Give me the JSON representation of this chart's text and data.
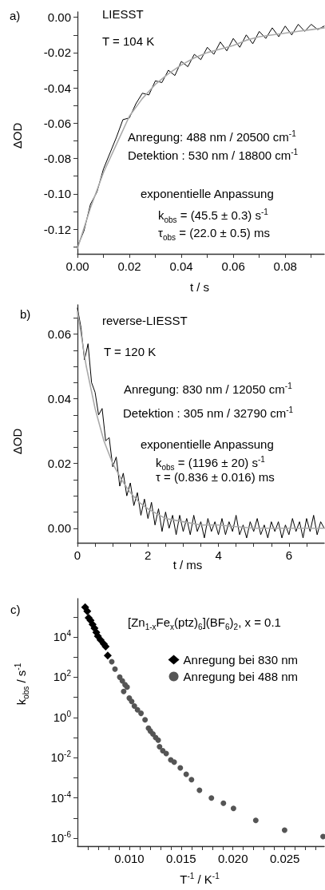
{
  "chart_data": [
    {
      "type": "line",
      "title": "a)",
      "xlabel": "t / s",
      "ylabel": "ΔOD",
      "annotations": [
        "LIESST",
        "T = 104 K",
        "Anregung: 488 nm / 20500 cm$^{-1}$",
        "Detektion : 530 nm / 18800 cm$^{-1}$",
        "exponentielle Anpassung",
        "k$_{obs}$ = (45.5 ± 0.3) s$^{-1}$",
        "τ$_{obs}$ = (22.0 ± 0.5) ms"
      ],
      "xlim": [
        0,
        0.095
      ],
      "ylim": [
        -0.134,
        0.003
      ],
      "xticks": [
        {
          "value": 0,
          "label": "0.00"
        },
        {
          "value": 0.01,
          "label": null
        },
        {
          "value": 0.02,
          "label": "0.02"
        },
        {
          "value": 0.03,
          "label": null
        },
        {
          "value": 0.04,
          "label": "0.04"
        },
        {
          "value": 0.05,
          "label": null
        },
        {
          "value": 0.06,
          "label": "0.06"
        },
        {
          "value": 0.07,
          "label": null
        },
        {
          "value": 0.08,
          "label": "0.08"
        },
        {
          "value": 0.09,
          "label": null
        }
      ],
      "yticks": [
        {
          "value": 0,
          "label": "0.00"
        },
        {
          "value": -0.01,
          "label": null
        },
        {
          "value": -0.02,
          "label": "-0.02"
        },
        {
          "value": -0.03,
          "label": null
        },
        {
          "value": -0.04,
          "label": "-0.04"
        },
        {
          "value": -0.05,
          "label": null
        },
        {
          "value": -0.06,
          "label": "-0.06"
        },
        {
          "value": -0.07,
          "label": null
        },
        {
          "value": -0.08,
          "label": "-0.08"
        },
        {
          "value": -0.09,
          "label": null
        },
        {
          "value": -0.1,
          "label": "-0.10"
        },
        {
          "value": -0.11,
          "label": null
        },
        {
          "value": -0.12,
          "label": "-0.12"
        },
        {
          "value": -0.13,
          "label": null
        }
      ],
      "grid": false,
      "legend": false,
      "marker": "none",
      "line_style": "solid",
      "series": [
        {
          "color": "#000000",
          "x": [
            0,
            0.0025,
            0.005,
            0.0075,
            0.01,
            0.0125,
            0.015,
            0.0175,
            0.02,
            0.0225,
            0.025,
            0.0275,
            0.03,
            0.0325,
            0.035,
            0.0375,
            0.04,
            0.0425,
            0.045,
            0.0475,
            0.05,
            0.0525,
            0.055,
            0.0575,
            0.06,
            0.0625,
            0.065,
            0.0675,
            0.07,
            0.0725,
            0.075,
            0.0775,
            0.08,
            0.0825,
            0.085,
            0.0875,
            0.09,
            0.0925,
            0.095
          ],
          "values": [
            -0.13,
            -0.121,
            -0.106,
            -0.099,
            -0.086,
            -0.077,
            -0.068,
            -0.058,
            -0.057,
            -0.049,
            -0.043,
            -0.044,
            -0.036,
            -0.037,
            -0.03,
            -0.033,
            -0.025,
            -0.028,
            -0.021,
            -0.024,
            -0.017,
            -0.021,
            -0.014,
            -0.019,
            -0.012,
            -0.017,
            -0.01,
            -0.015,
            -0.008,
            -0.012,
            -0.006,
            -0.011,
            -0.005,
            -0.01,
            -0.004,
            -0.008,
            -0.004,
            -0.007,
            -0.005
          ]
        },
        {
          "color": "#aaaaaa",
          "x": [
            0,
            0.005,
            0.01,
            0.015,
            0.02,
            0.025,
            0.03,
            0.035,
            0.04,
            0.045,
            0.05,
            0.055,
            0.06,
            0.065,
            0.07,
            0.075,
            0.08,
            0.085,
            0.09,
            0.095
          ],
          "values": [
            -0.131,
            -0.108,
            -0.088,
            -0.072,
            -0.056,
            -0.046,
            -0.038,
            -0.032,
            -0.027,
            -0.023,
            -0.02,
            -0.018,
            -0.016,
            -0.013,
            -0.011,
            -0.01,
            -0.009,
            -0.008,
            -0.007,
            -0.006
          ]
        }
      ]
    },
    {
      "type": "line",
      "title": "b)",
      "xlabel": "t / ms",
      "ylabel": "ΔOD",
      "annotations": [
        "reverse-LIESST",
        "T = 120 K",
        "Anregung: 830 nm / 12050 cm$^{-1}$",
        "Detektion : 305 nm / 32790 cm$^{-1}$",
        "exponentielle Anpassung",
        "k$_{obs}$ = (1196 ± 20) s$^{-1}$",
        "τ = (0.836 ± 0.016) ms"
      ],
      "xlim": [
        0,
        7
      ],
      "ylim": [
        -0.0045,
        0.069
      ],
      "xticks": [
        0,
        {
          "value": 0.5,
          "label": null
        },
        {
          "value": 1,
          "label": null
        },
        {
          "value": 1.5,
          "label": null
        },
        2,
        {
          "value": 2.5,
          "label": null
        },
        {
          "value": 3,
          "label": null
        },
        {
          "value": 3.5,
          "label": null
        },
        4,
        {
          "value": 4.5,
          "label": null
        },
        {
          "value": 5,
          "label": null
        },
        {
          "value": 5.5,
          "label": null
        },
        6,
        {
          "value": 6.5,
          "label": null
        }
      ],
      "yticks": [
        {
          "value": 0,
          "label": "0.00"
        },
        {
          "value": 0.005,
          "label": null
        },
        {
          "value": 0.01,
          "label": null
        },
        {
          "value": 0.015,
          "label": null
        },
        {
          "value": 0.02,
          "label": "0.02"
        },
        {
          "value": 0.025,
          "label": null
        },
        {
          "value": 0.03,
          "label": null
        },
        {
          "value": 0.035,
          "label": null
        },
        {
          "value": 0.04,
          "label": "0.04"
        },
        {
          "value": 0.045,
          "label": null
        },
        {
          "value": 0.05,
          "label": null
        },
        {
          "value": 0.055,
          "label": null
        },
        {
          "value": 0.06,
          "label": "0.06"
        },
        {
          "value": 0.065,
          "label": null
        }
      ],
      "grid": false,
      "legend": false,
      "marker": "none",
      "line_style": "solid",
      "series": [
        {
          "color": "#000000",
          "x": [
            0,
            0.1,
            0.2,
            0.3,
            0.4,
            0.5,
            0.6,
            0.7,
            0.8,
            0.9,
            1,
            1.1,
            1.2,
            1.3,
            1.4,
            1.5,
            1.6,
            1.7,
            1.8,
            1.9,
            2,
            2.1,
            2.2,
            2.3,
            2.4,
            2.5,
            2.6,
            2.7,
            2.8,
            2.9,
            3,
            3.1,
            3.2,
            3.3,
            3.4,
            3.5,
            3.6,
            3.7,
            3.8,
            3.9,
            4,
            4.1,
            4.2,
            4.3,
            4.4,
            4.5,
            4.6,
            4.7,
            4.8,
            4.9,
            5,
            5.1,
            5.2,
            5.3,
            5.4,
            5.5,
            5.6,
            5.7,
            5.8,
            5.9,
            6,
            6.1,
            6.2,
            6.3,
            6.4,
            6.5,
            6.6,
            6.7,
            6.8,
            6.9,
            7
          ],
          "values": [
            0.068,
            0.062,
            0.052,
            0.057,
            0.045,
            0.042,
            0.035,
            0.037,
            0.027,
            0.028,
            0.019,
            0.022,
            0.013,
            0.017,
            0.01,
            0.014,
            0.007,
            0.011,
            0.004,
            0.009,
            0.003,
            0.008,
            0.001,
            0.006,
            -0.001,
            0.005,
            0,
            0.004,
            -0.002,
            0.004,
            -0.001,
            0.003,
            -0.002,
            0.004,
            -0.001,
            0.002,
            -0.003,
            0.003,
            -0.001,
            0.002,
            -0.002,
            0.003,
            -0.002,
            0.002,
            -0.001,
            0.004,
            -0.002,
            0.001,
            -0.003,
            0.002,
            -0.001,
            0.003,
            -0.002,
            0.001,
            -0.003,
            0.002,
            -0.001,
            0.002,
            -0.003,
            0.001,
            -0.002,
            0.003,
            -0.001,
            0.002,
            -0.003,
            0.003,
            -0.001,
            0.004,
            -0.002,
            0.002,
            0
          ]
        },
        {
          "color": "#aaaaaa",
          "x": [
            0,
            0.25,
            0.5,
            0.75,
            1,
            1.25,
            1.5,
            1.75,
            2,
            2.5,
            3,
            3.5,
            4,
            5,
            6,
            7
          ],
          "values": [
            0.067,
            0.05,
            0.037,
            0.027,
            0.02,
            0.015,
            0.011,
            0.008,
            0.006,
            0.003,
            0.002,
            0.001,
            0.001,
            0,
            0,
            0
          ]
        }
      ]
    },
    {
      "type": "scatter",
      "title": "c)",
      "xlabel": "T$^{-1}$ / K$^{-1}$",
      "ylabel": "k$_{obs}$ / s$^{-1}$",
      "annotations": [
        "[Zn$_{1-x}$Fe$_{x}$(ptz)$_{6}$](BF$_{6}$)$_{2}$, x = 0.1"
      ],
      "log": "y",
      "xlim": [
        0.005,
        0.0288
      ],
      "ylim": [
        4e-07,
        800000.0
      ],
      "xticks": [
        {
          "value": 0.006,
          "label": null
        },
        {
          "value": 0.007,
          "label": null
        },
        {
          "value": 0.008,
          "label": null
        },
        {
          "value": 0.009,
          "label": null
        },
        {
          "value": 0.01,
          "label": "0.010"
        },
        {
          "value": 0.011,
          "label": null
        },
        {
          "value": 0.012,
          "label": null
        },
        {
          "value": 0.013,
          "label": null
        },
        {
          "value": 0.014,
          "label": null
        },
        {
          "value": 0.015,
          "label": "0.015"
        },
        {
          "value": 0.016,
          "label": null
        },
        {
          "value": 0.017,
          "label": null
        },
        {
          "value": 0.018,
          "label": null
        },
        {
          "value": 0.019,
          "label": null
        },
        {
          "value": 0.02,
          "label": "0.020"
        },
        {
          "value": 0.021,
          "label": null
        },
        {
          "value": 0.022,
          "label": null
        },
        {
          "value": 0.023,
          "label": null
        },
        {
          "value": 0.024,
          "label": null
        },
        {
          "value": 0.025,
          "label": "0.025"
        },
        {
          "value": 0.026,
          "label": null
        },
        {
          "value": 0.027,
          "label": null
        },
        {
          "value": 0.028,
          "label": null
        }
      ],
      "yticks": [
        {
          "value": 1e-06,
          "label": "10$^{-6}$"
        },
        {
          "value": 1e-05,
          "label": null
        },
        {
          "value": 0.0001,
          "label": "10$^{-4}$"
        },
        {
          "value": 0.001,
          "label": null
        },
        {
          "value": 0.01,
          "label": "10$^{-2}$"
        },
        {
          "value": 0.1,
          "label": null
        },
        {
          "value": 1,
          "label": "10$^{0}$"
        },
        {
          "value": 10,
          "label": null
        },
        {
          "value": 100,
          "label": "10$^{2}$"
        },
        {
          "value": 1000,
          "label": null
        },
        {
          "value": 10000,
          "label": "10$^{4}$"
        },
        {
          "value": 100000,
          "label": null
        }
      ],
      "grid": false,
      "legend": "top right",
      "series": [
        {
          "name": "Anregung bei 830 nm",
          "color": "#000000",
          "marker": "diamond",
          "x": [
            0.00574,
            0.00595,
            0.00608,
            0.00626,
            0.00646,
            0.00664,
            0.00682,
            0.00697,
            0.00723,
            0.00754,
            0.00772,
            0.00792
          ],
          "values": [
            300000.0,
            190000.0,
            90000.0,
            67000.0,
            42000.0,
            27000.0,
            17000.0,
            11000.0,
            7000.0,
            4500.0,
            3300.0,
            1200.0
          ]
        },
        {
          "name": "Anregung bei 488 nm",
          "color": "#555555",
          "marker": "circle",
          "x": [
            0.00831,
            0.00862,
            0.00908,
            0.00933,
            0.00959,
            0.00979,
            0.00946,
            0.01,
            0.01023,
            0.01049,
            0.01079,
            0.01113,
            0.01152,
            0.01185,
            0.01203,
            0.01228,
            0.01254,
            0.01279,
            0.01292,
            0.01323,
            0.01356,
            0.014,
            0.01433,
            0.01492,
            0.01549,
            0.016,
            0.01677,
            0.01792,
            0.01908,
            0.02005,
            0.0222,
            0.02498,
            0.02869
          ],
          "values": [
            590,
            250,
            100,
            65,
            42,
            32,
            19.5,
            9.1,
            6.2,
            3.7,
            2.4,
            1.6,
            0.76,
            0.29,
            0.21,
            0.15,
            0.1,
            0.074,
            0.035,
            0.022,
            0.016,
            0.0077,
            0.006,
            0.0031,
            0.0015,
            0.00081,
            0.00024,
            9.8e-05,
            5.4e-05,
            3e-05,
            7.6e-06,
            2.5e-06,
            1.2e-06
          ]
        }
      ]
    }
  ]
}
